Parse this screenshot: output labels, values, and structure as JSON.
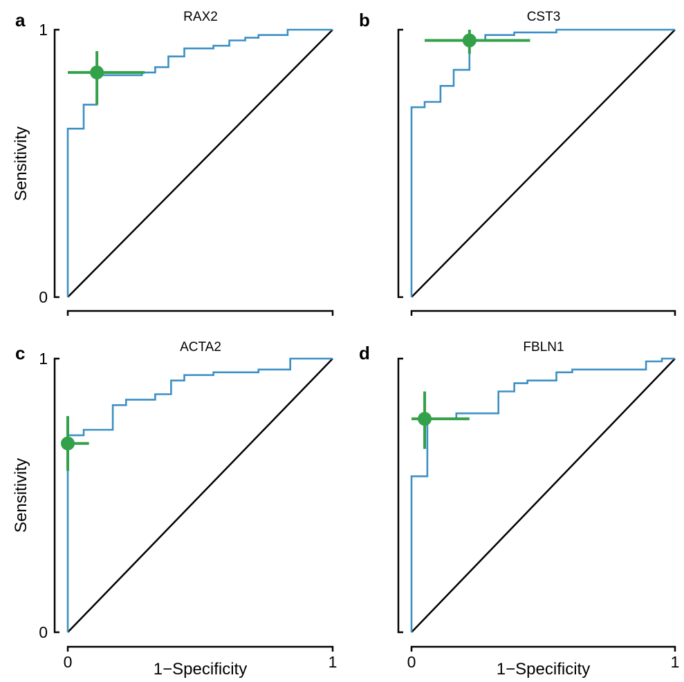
{
  "figure": {
    "xlabel": "1−Specificity",
    "ylabel": "Sensitivity"
  },
  "colors": {
    "roc_curve": "#3b8fc4",
    "operating_point": "#33a04a",
    "diagonal": "#000000",
    "axis": "#000000"
  },
  "chart_data": [
    {
      "type": "line",
      "panel": "a",
      "title": "RAX2",
      "xlabel": "",
      "ylabel": "Sensitivity",
      "xlim": [
        0,
        1
      ],
      "ylim": [
        0,
        1
      ],
      "xticks": [
        "0",
        "1"
      ],
      "yticks": [
        "0",
        "1"
      ],
      "show_x_tick_labels": false,
      "grid": false,
      "roc": [
        [
          0,
          0
        ],
        [
          0,
          0.63
        ],
        [
          0.06,
          0.63
        ],
        [
          0.06,
          0.72
        ],
        [
          0.11,
          0.72
        ],
        [
          0.11,
          0.83
        ],
        [
          0.28,
          0.83
        ],
        [
          0.28,
          0.84
        ],
        [
          0.33,
          0.84
        ],
        [
          0.33,
          0.86
        ],
        [
          0.38,
          0.86
        ],
        [
          0.38,
          0.9
        ],
        [
          0.44,
          0.9
        ],
        [
          0.44,
          0.93
        ],
        [
          0.55,
          0.93
        ],
        [
          0.55,
          0.94
        ],
        [
          0.61,
          0.94
        ],
        [
          0.61,
          0.96
        ],
        [
          0.67,
          0.96
        ],
        [
          0.67,
          0.97
        ],
        [
          0.72,
          0.97
        ],
        [
          0.72,
          0.98
        ],
        [
          0.83,
          0.98
        ],
        [
          0.83,
          1.0
        ],
        [
          1,
          1
        ]
      ],
      "operating_point": {
        "x": 0.11,
        "y": 0.84,
        "x_range": [
          0,
          0.29
        ],
        "y_range": [
          0.72,
          0.92
        ]
      }
    },
    {
      "type": "line",
      "panel": "b",
      "title": "CST3",
      "xlabel": "",
      "ylabel": "",
      "xlim": [
        0,
        1
      ],
      "ylim": [
        0,
        1
      ],
      "xticks": [
        "0",
        "1"
      ],
      "yticks": [
        "0",
        "1"
      ],
      "show_x_tick_labels": false,
      "show_y_tick_labels": false,
      "grid": false,
      "roc": [
        [
          0,
          0
        ],
        [
          0,
          0.71
        ],
        [
          0.05,
          0.71
        ],
        [
          0.05,
          0.73
        ],
        [
          0.11,
          0.73
        ],
        [
          0.11,
          0.79
        ],
        [
          0.16,
          0.79
        ],
        [
          0.16,
          0.85
        ],
        [
          0.22,
          0.85
        ],
        [
          0.22,
          0.96
        ],
        [
          0.28,
          0.96
        ],
        [
          0.28,
          0.98
        ],
        [
          0.39,
          0.98
        ],
        [
          0.39,
          0.99
        ],
        [
          0.55,
          0.99
        ],
        [
          0.55,
          1.0
        ],
        [
          1,
          1
        ]
      ],
      "operating_point": {
        "x": 0.22,
        "y": 0.96,
        "x_range": [
          0.05,
          0.45
        ],
        "y_range": [
          0.91,
          1.0
        ]
      }
    },
    {
      "type": "line",
      "panel": "c",
      "title": "ACTA2",
      "xlabel": "1−Specificity",
      "ylabel": "Sensitivity",
      "xlim": [
        0,
        1
      ],
      "ylim": [
        0,
        1
      ],
      "xticks": [
        "0",
        "1"
      ],
      "yticks": [
        "0",
        "1"
      ],
      "grid": false,
      "roc": [
        [
          0,
          0
        ],
        [
          0,
          0.72
        ],
        [
          0.06,
          0.72
        ],
        [
          0.06,
          0.74
        ],
        [
          0.17,
          0.74
        ],
        [
          0.17,
          0.83
        ],
        [
          0.22,
          0.83
        ],
        [
          0.22,
          0.85
        ],
        [
          0.33,
          0.85
        ],
        [
          0.33,
          0.87
        ],
        [
          0.39,
          0.87
        ],
        [
          0.39,
          0.92
        ],
        [
          0.44,
          0.92
        ],
        [
          0.44,
          0.94
        ],
        [
          0.55,
          0.94
        ],
        [
          0.55,
          0.95
        ],
        [
          0.72,
          0.95
        ],
        [
          0.72,
          0.96
        ],
        [
          0.84,
          0.96
        ],
        [
          0.84,
          1.0
        ],
        [
          1,
          1
        ]
      ],
      "operating_point": {
        "x": 0,
        "y": 0.69,
        "x_range": [
          0,
          0.08
        ],
        "y_range": [
          0.59,
          0.79
        ]
      }
    },
    {
      "type": "line",
      "panel": "d",
      "title": "FBLN1",
      "xlabel": "1−Specificity",
      "ylabel": "",
      "xlim": [
        0,
        1
      ],
      "ylim": [
        0,
        1
      ],
      "xticks": [
        "0",
        "1"
      ],
      "yticks": [
        "0",
        "1"
      ],
      "show_y_tick_labels": false,
      "grid": false,
      "roc": [
        [
          0,
          0
        ],
        [
          0,
          0.57
        ],
        [
          0.06,
          0.57
        ],
        [
          0.06,
          0.78
        ],
        [
          0.17,
          0.78
        ],
        [
          0.17,
          0.8
        ],
        [
          0.33,
          0.8
        ],
        [
          0.33,
          0.88
        ],
        [
          0.39,
          0.88
        ],
        [
          0.39,
          0.91
        ],
        [
          0.44,
          0.91
        ],
        [
          0.44,
          0.92
        ],
        [
          0.55,
          0.92
        ],
        [
          0.55,
          0.95
        ],
        [
          0.61,
          0.95
        ],
        [
          0.61,
          0.96
        ],
        [
          0.89,
          0.96
        ],
        [
          0.89,
          0.99
        ],
        [
          0.95,
          0.99
        ],
        [
          0.95,
          1.0
        ],
        [
          1,
          1
        ]
      ],
      "operating_point": {
        "x": 0.05,
        "y": 0.78,
        "x_range": [
          0,
          0.22
        ],
        "y_range": [
          0.67,
          0.88
        ]
      }
    }
  ]
}
